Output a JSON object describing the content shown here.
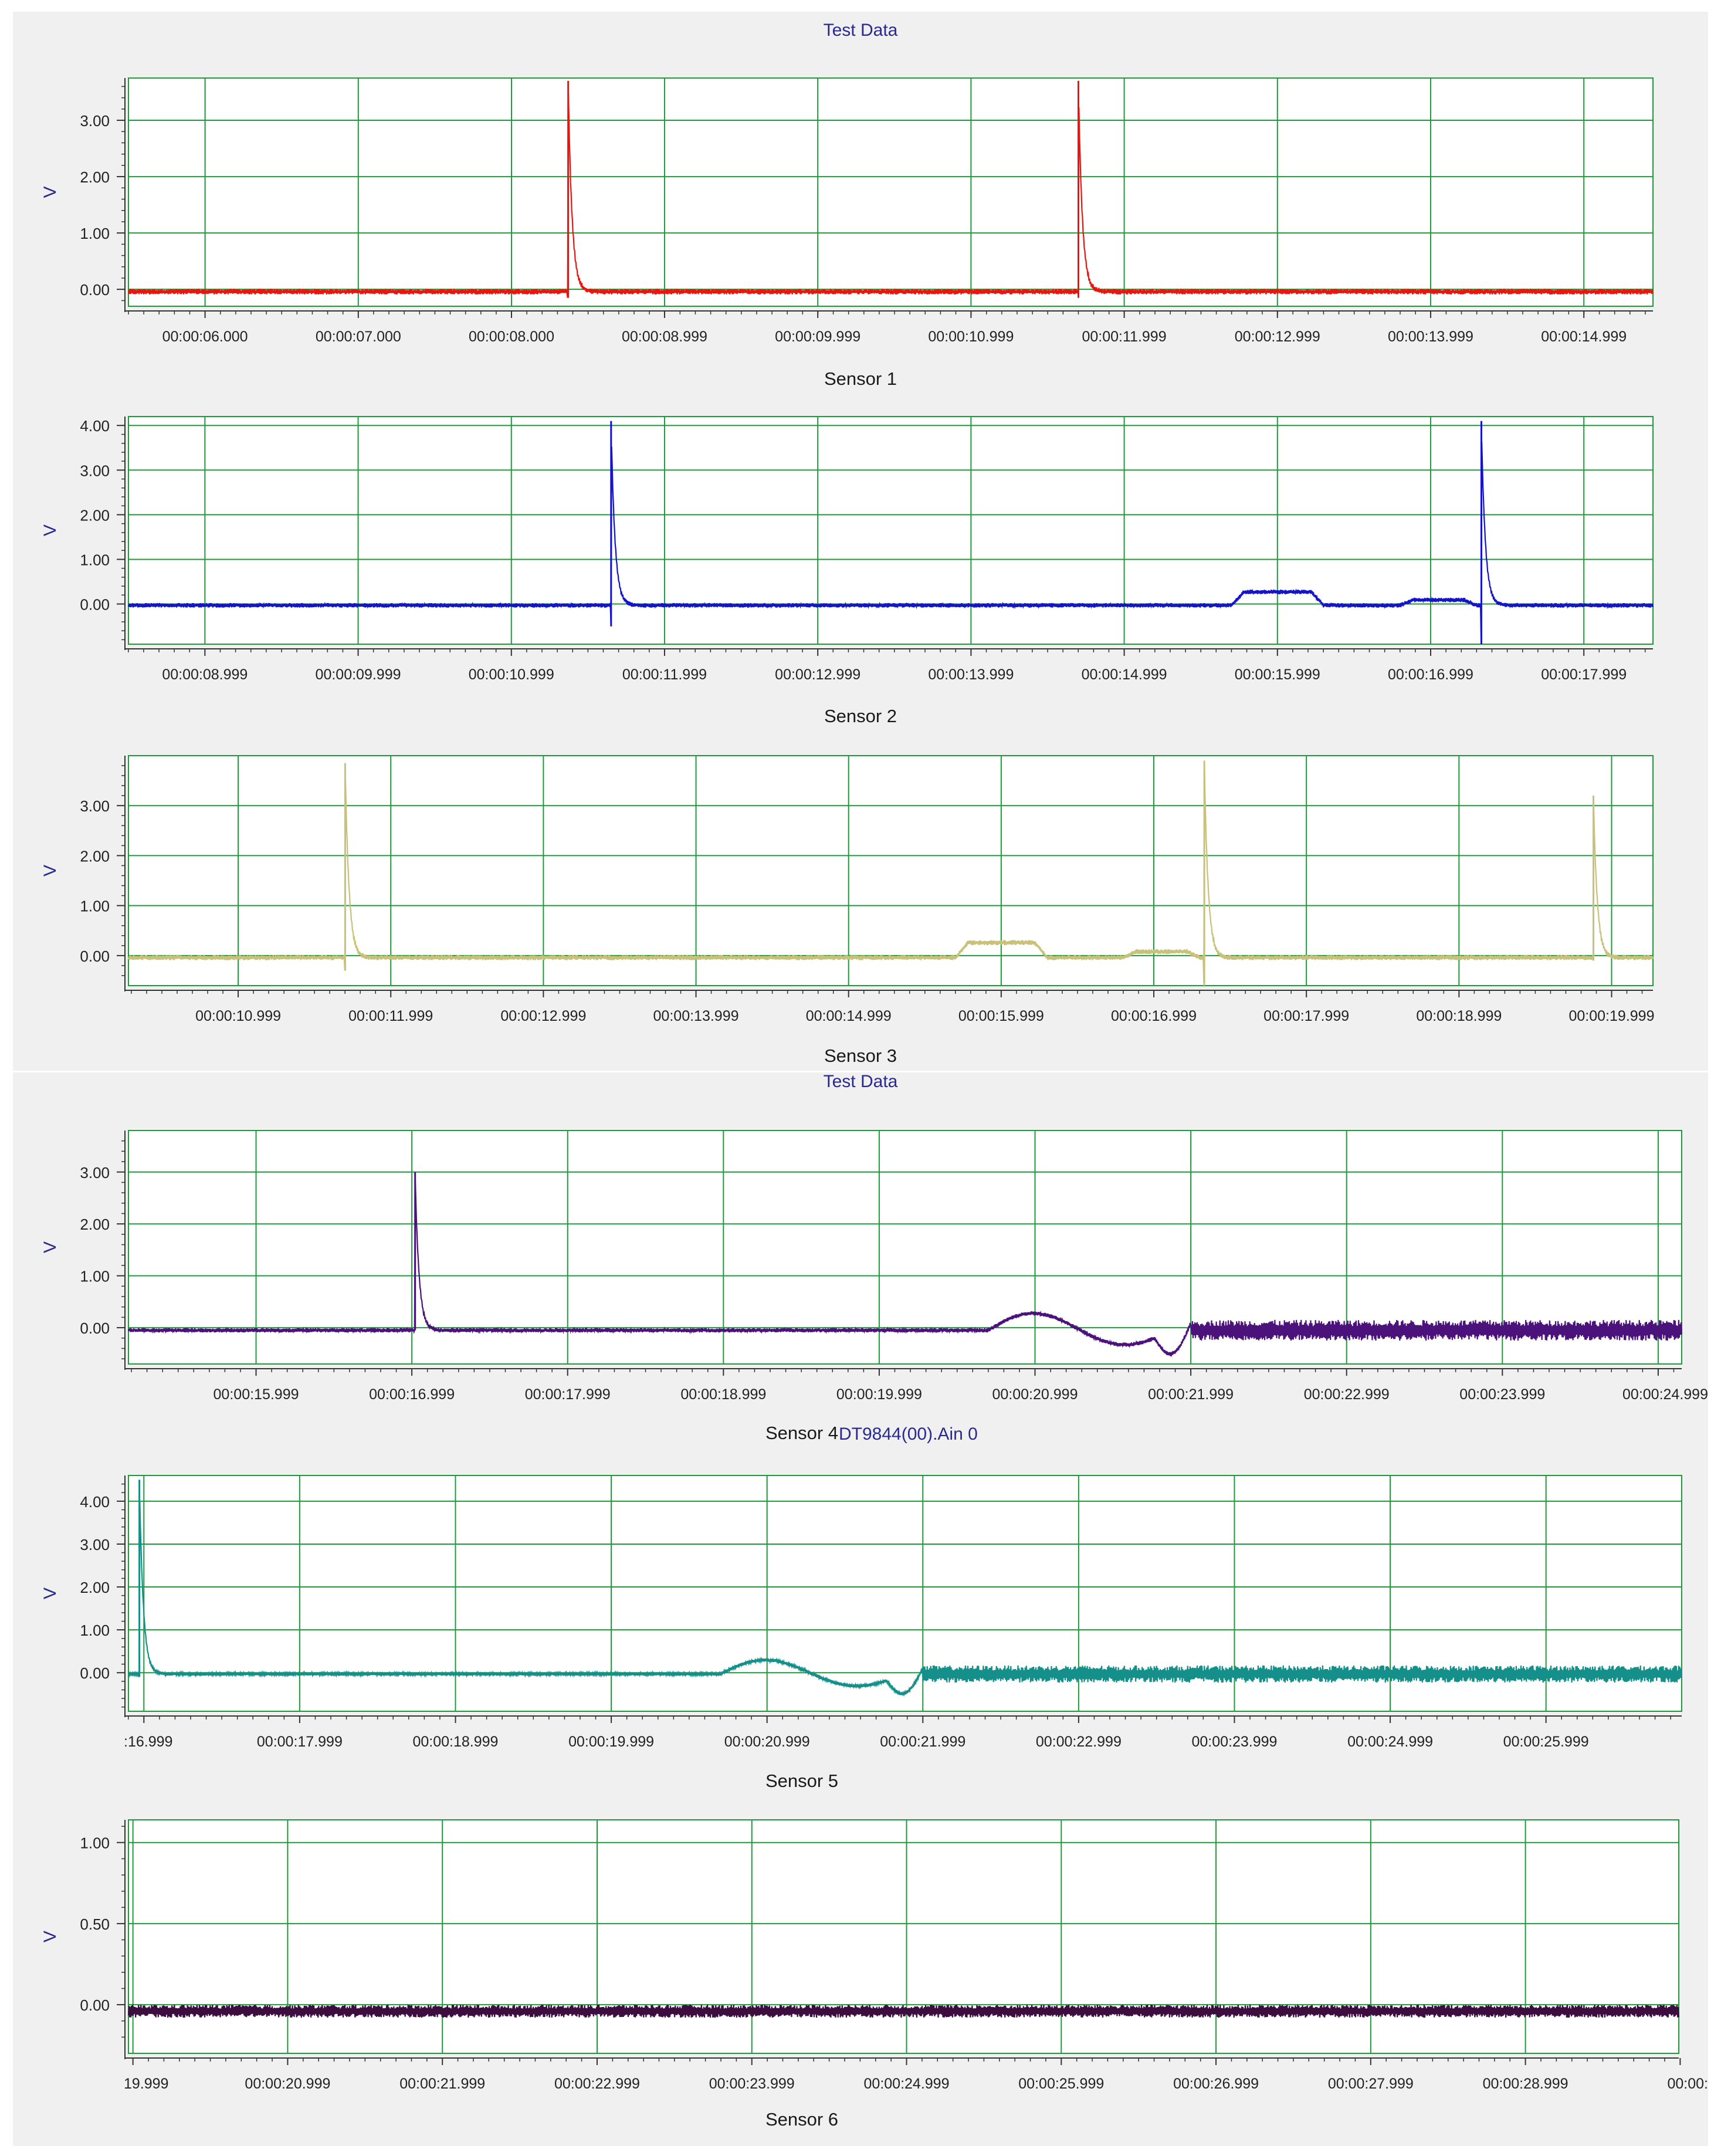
{
  "headers": [
    "Test Data",
    "Test Data"
  ],
  "legend_extra": "DT9844(00).Ain 0",
  "style": {
    "grid_color": "#1f9a3a",
    "axis_text_color": "#222222",
    "ylabel_color": "#2a2a8e",
    "panel_bg": "#f0f0f0"
  },
  "chart_data": [
    {
      "type": "line",
      "title": "",
      "xlabel": "Sensor 1",
      "ylabel": "V",
      "color": "#e8160f",
      "grid": true,
      "x_range_s": [
        5.5,
        15.45
      ],
      "ylim": [
        -0.3,
        3.75
      ],
      "y_ticks": [
        0.0,
        1.0,
        2.0,
        3.0
      ],
      "y_tick_labels": [
        "0.00",
        "1.00",
        "2.00",
        "3.00"
      ],
      "x_ticks_s": [
        6.0,
        7.0,
        8.0,
        8.999,
        9.999,
        10.999,
        11.999,
        12.999,
        13.999,
        14.999
      ],
      "x_tick_labels": [
        "00:00:06.000",
        "00:00:07.000",
        "00:00:08.000",
        "00:00:08.999",
        "00:00:09.999",
        "00:00:10.999",
        "00:00:11.999",
        "00:00:12.999",
        "00:00:13.999",
        "00:00:14.999"
      ],
      "baseline": -0.04,
      "noise": 0.05,
      "spikes": [
        {
          "t": 8.37,
          "peak": 3.7,
          "undershoot": -0.15
        },
        {
          "t": 11.7,
          "peak": 3.7,
          "undershoot": -0.15
        }
      ],
      "plateaus": []
    },
    {
      "type": "line",
      "title": "",
      "xlabel": "Sensor 2",
      "ylabel": "V",
      "color": "#1414c8",
      "grid": true,
      "x_range_s": [
        8.5,
        18.45
      ],
      "ylim": [
        -0.9,
        4.2
      ],
      "y_ticks": [
        0.0,
        1.0,
        2.0,
        3.0,
        4.0
      ],
      "y_tick_labels": [
        "0.00",
        "1.00",
        "2.00",
        "3.00",
        "4.00"
      ],
      "x_ticks_s": [
        8.999,
        9.999,
        10.999,
        11.999,
        12.999,
        13.999,
        14.999,
        15.999,
        16.999,
        17.999
      ],
      "x_tick_labels": [
        "00:00:08.999",
        "00:00:09.999",
        "00:00:10.999",
        "00:00:11.999",
        "00:00:12.999",
        "00:00:13.999",
        "00:00:14.999",
        "00:00:15.999",
        "00:00:16.999",
        "00:00:17.999"
      ],
      "baseline": -0.03,
      "noise": 0.05,
      "spikes": [
        {
          "t": 11.65,
          "peak": 4.1,
          "undershoot": -0.5
        },
        {
          "t": 17.33,
          "peak": 4.1,
          "undershoot": -0.9
        }
      ],
      "plateaus": [
        {
          "from": 15.7,
          "to": 16.3,
          "level": 0.3
        },
        {
          "from": 16.8,
          "to": 17.3,
          "level": 0.12
        }
      ]
    },
    {
      "type": "line",
      "title": "",
      "xlabel": "Sensor 3",
      "ylabel": "V",
      "color": "#c9c07a",
      "grid": true,
      "x_range_s": [
        10.28,
        20.27
      ],
      "ylim": [
        -0.6,
        4.0
      ],
      "y_ticks": [
        0.0,
        1.0,
        2.0,
        3.0
      ],
      "y_tick_labels": [
        "0.00",
        "1.00",
        "2.00",
        "3.00"
      ],
      "x_ticks_s": [
        10.999,
        11.999,
        12.999,
        13.999,
        14.999,
        15.999,
        16.999,
        17.999,
        18.999,
        19.999
      ],
      "x_tick_labels": [
        "00:00:10.999",
        "00:00:11.999",
        "00:00:12.999",
        "00:00:13.999",
        "00:00:14.999",
        "00:00:15.999",
        "00:00:16.999",
        "00:00:17.999",
        "00:00:18.999",
        "00:00:19.999"
      ],
      "baseline": -0.04,
      "noise": 0.05,
      "spikes": [
        {
          "t": 11.7,
          "peak": 3.85,
          "undershoot": -0.3
        },
        {
          "t": 17.33,
          "peak": 3.9,
          "undershoot": -0.6
        },
        {
          "t": 19.88,
          "peak": 3.2,
          "undershoot": -0.1
        }
      ],
      "plateaus": [
        {
          "from": 15.7,
          "to": 16.3,
          "level": 0.3
        },
        {
          "from": 16.8,
          "to": 17.3,
          "level": 0.12
        }
      ]
    },
    {
      "type": "line",
      "title": "",
      "xlabel": "Sensor 4",
      "ylabel": "V",
      "color": "#4a127a",
      "grid": true,
      "x_range_s": [
        15.18,
        25.15
      ],
      "ylim": [
        -0.7,
        3.8
      ],
      "y_ticks": [
        0.0,
        1.0,
        2.0,
        3.0
      ],
      "y_tick_labels": [
        "0.00",
        "1.00",
        "2.00",
        "3.00"
      ],
      "x_ticks_s": [
        15.999,
        16.999,
        17.999,
        18.999,
        19.999,
        20.999,
        21.999,
        22.999,
        23.999,
        24.999
      ],
      "x_tick_labels": [
        "00:00:15.999",
        "00:00:16.999",
        "00:00:17.999",
        "00:00:18.999",
        "00:00:19.999",
        "00:00:20.999",
        "00:00:21.999",
        "00:00:22.999",
        "00:00:23.999",
        "00:00:24.999"
      ],
      "baseline": -0.05,
      "noise": 0.04,
      "spikes": [
        {
          "t": 17.02,
          "peak": 3.0,
          "undershoot": -0.05
        }
      ],
      "wave": {
        "from": 20.7,
        "to": 22.0
      },
      "late_noise": {
        "from": 22.0,
        "amp": 0.2
      }
    },
    {
      "type": "line",
      "title": "",
      "xlabel": "Sensor 5",
      "ylabel": "V",
      "color": "#158f8a",
      "grid": true,
      "x_range_s": [
        16.9,
        26.87
      ],
      "ylim": [
        -0.9,
        4.6
      ],
      "y_ticks": [
        0.0,
        1.0,
        2.0,
        3.0,
        4.0
      ],
      "y_tick_labels": [
        "0.00",
        "1.00",
        "2.00",
        "3.00",
        "4.00"
      ],
      "x_ticks_s": [
        16.999,
        17.999,
        18.999,
        19.999,
        20.999,
        21.999,
        22.999,
        23.999,
        24.999,
        25.999
      ],
      "x_tick_labels": [
        ":16.999",
        "00:00:17.999",
        "00:00:18.999",
        "00:00:19.999",
        "00:00:20.999",
        "00:00:21.999",
        "00:00:22.999",
        "00:00:23.999",
        "00:00:24.999",
        "00:00:25.999"
      ],
      "baseline": -0.03,
      "noise": 0.04,
      "spikes": [
        {
          "t": 16.97,
          "peak": 4.5,
          "undershoot": -0.1
        }
      ],
      "wave": {
        "from": 20.7,
        "to": 22.0
      },
      "late_noise": {
        "from": 22.0,
        "amp": 0.2
      }
    },
    {
      "type": "line",
      "title": "",
      "xlabel": "Sensor 6",
      "ylabel": "V",
      "color": "#3d0d40",
      "grid": true,
      "x_range_s": [
        19.97,
        29.99
      ],
      "ylim": [
        -0.3,
        1.14
      ],
      "y_ticks": [
        0.0,
        0.5,
        1.0
      ],
      "y_tick_labels": [
        "0.00",
        "0.50",
        "1.00"
      ],
      "x_ticks_s": [
        19.999,
        20.999,
        21.999,
        22.999,
        23.999,
        24.999,
        25.999,
        26.999,
        27.999,
        28.999,
        29.999
      ],
      "x_tick_labels": [
        "19.999",
        "00:00:20.999",
        "00:00:21.999",
        "00:00:22.999",
        "00:00:23.999",
        "00:00:24.999",
        "00:00:25.999",
        "00:00:26.999",
        "00:00:27.999",
        "00:00:28.999",
        "00:00:"
      ],
      "baseline": -0.04,
      "noise": 0.04,
      "spikes": [],
      "plateaus": []
    }
  ]
}
